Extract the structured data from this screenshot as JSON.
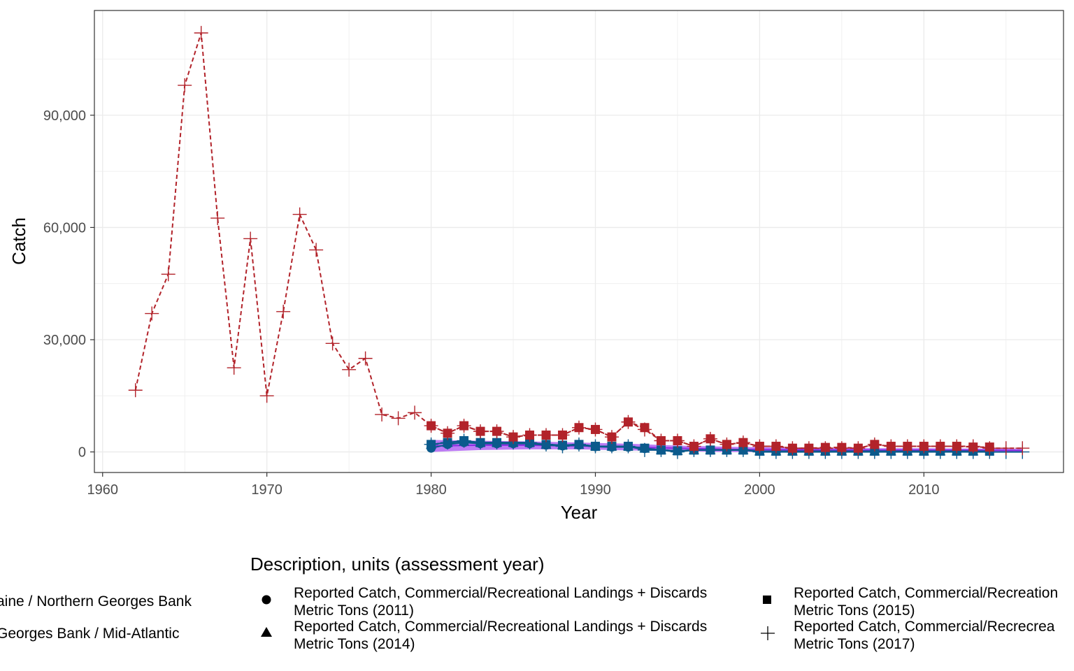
{
  "chart_data": {
    "type": "line",
    "xlabel": "Year",
    "ylabel": "Catch",
    "xlim": [
      1959.5,
      2018.5
    ],
    "ylim": [
      -5500,
      118000
    ],
    "x_ticks": [
      1960,
      1970,
      1980,
      1990,
      2000,
      2010
    ],
    "x_tick_labels": [
      "1960",
      "1970",
      "1980",
      "1990",
      "2000",
      "2010"
    ],
    "y_ticks": [
      0,
      30000,
      60000,
      90000
    ],
    "y_tick_labels": [
      "0",
      "30,000",
      "60,000",
      "90,000"
    ],
    "grid": true,
    "legend": {
      "title": "Description, units (assessment year)",
      "placement": "bottom",
      "color_entries": [
        {
          "label": "aine / Northern Georges Bank",
          "color": "#0b5a8c"
        },
        {
          "label": " Georges Bank / Mid-Atlantic",
          "color": "#b2232a"
        }
      ],
      "shape_entries": [
        {
          "shape": "circle",
          "line1": "Reported Catch, Commercial/Recreational Landings + Discards",
          "line2": "Metric Tons (2011)"
        },
        {
          "shape": "triangle",
          "line1": "Reported Catch, Commercial/Recreational Landings + Discards",
          "line2": "Metric Tons (2014)"
        },
        {
          "shape": "square",
          "line1": "Reported Catch, Commercial/Recreation",
          "line2": "Metric Tons (2015)"
        },
        {
          "shape": "plus",
          "line1": "Reported Catch, Commercial/Recrecrea",
          "line2": "Metric Tons (2017)"
        }
      ]
    },
    "colors": {
      "southern": "#b2232a",
      "northern": "#0b5a8c",
      "band": "#a64ff0",
      "band_line": "#8a2be2"
    },
    "series": [
      {
        "region": "southern",
        "shape": "plus",
        "x": [
          1962,
          1963,
          1964,
          1965,
          1966,
          1967,
          1968,
          1969,
          1970,
          1971,
          1972,
          1973,
          1974,
          1975,
          1976,
          1977,
          1978,
          1979,
          1980,
          1981,
          1982,
          1983,
          1984,
          1985,
          1986,
          1987,
          1988,
          1989,
          1990,
          1991,
          1992,
          1993,
          1994,
          1995,
          1996,
          1997,
          1998,
          1999,
          2000,
          2001,
          2002,
          2003,
          2004,
          2005,
          2006,
          2007,
          2008,
          2009,
          2010,
          2011,
          2012,
          2013,
          2014,
          2015,
          2016
        ],
        "y": [
          16500,
          37000,
          47500,
          98000,
          112000,
          62500,
          22500,
          57000,
          15000,
          37500,
          63500,
          54000,
          29000,
          22000,
          25000,
          10000,
          9000,
          10500,
          7000,
          5000,
          7000,
          5500,
          5500,
          4000,
          4500,
          4500,
          4500,
          6500,
          6000,
          4000,
          8000,
          6000,
          3000,
          3000,
          1500,
          3500,
          2000,
          2500,
          1500,
          1500,
          1000,
          1000,
          1000,
          1000,
          1000,
          2000,
          1500,
          1500,
          1500,
          1500,
          1500,
          1500,
          1000,
          1000,
          1000
        ]
      },
      {
        "region": "southern",
        "shape": "square",
        "x": [
          1980,
          1981,
          1982,
          1983,
          1984,
          1985,
          1986,
          1987,
          1988,
          1989,
          1990,
          1991,
          1992,
          1993,
          1994,
          1995,
          1996,
          1997,
          1998,
          1999,
          2000,
          2001,
          2002,
          2003,
          2004,
          2005,
          2006,
          2007,
          2008,
          2009,
          2010,
          2011,
          2012,
          2013,
          2014
        ],
        "y": [
          7000,
          5000,
          7000,
          5500,
          5500,
          4000,
          4500,
          4500,
          4500,
          6500,
          6000,
          4000,
          8000,
          6500,
          3000,
          3000,
          1500,
          3500,
          2000,
          2500,
          1500,
          1500,
          1000,
          1000,
          1200,
          1200,
          1000,
          2000,
          1500,
          1500,
          1500,
          1500,
          1500,
          1300,
          1300
        ]
      },
      {
        "region": "northern",
        "shape": "plus",
        "x": [
          1980,
          1981,
          1982,
          1983,
          1984,
          1985,
          1986,
          1987,
          1988,
          1989,
          1990,
          1991,
          1992,
          1993,
          1994,
          1995,
          1996,
          1997,
          1998,
          1999,
          2000,
          2001,
          2002,
          2003,
          2004,
          2005,
          2006,
          2007,
          2008,
          2009,
          2010,
          2011,
          2012,
          2013,
          2014,
          2015,
          2016
        ],
        "y": [
          2000,
          2500,
          3000,
          2500,
          2500,
          2500,
          2500,
          2000,
          1500,
          2000,
          1500,
          1500,
          1500,
          500,
          500,
          0,
          500,
          500,
          500,
          500,
          0,
          0,
          0,
          0,
          0,
          0,
          0,
          0,
          0,
          0,
          0,
          0,
          0,
          0,
          0,
          0,
          0
        ]
      },
      {
        "region": "northern",
        "shape": "square",
        "x": [
          1980,
          1981,
          1982,
          1983,
          1984,
          1985,
          1986,
          1987,
          1988,
          1989,
          1990,
          1991,
          1992,
          1993,
          1994,
          1995,
          1996,
          1997,
          1998,
          1999,
          2000,
          2001,
          2002,
          2003,
          2004,
          2005,
          2006,
          2007,
          2008,
          2009,
          2010,
          2011,
          2012,
          2013,
          2014
        ],
        "y": [
          2000,
          2500,
          3000,
          2500,
          2500,
          2500,
          2500,
          2000,
          1800,
          2000,
          1500,
          1500,
          1500,
          1000,
          500,
          300,
          500,
          500,
          500,
          500,
          200,
          200,
          200,
          200,
          200,
          200,
          200,
          200,
          200,
          200,
          200,
          200,
          200,
          200,
          200
        ]
      },
      {
        "region": "northern",
        "shape": "triangle",
        "x": [
          1980,
          1981,
          1982,
          1983,
          1984,
          1985,
          1986,
          1987,
          1988,
          1989,
          1990,
          1991,
          1992,
          1993,
          1994,
          1995,
          1996,
          1997,
          1998,
          1999,
          2000,
          2001,
          2002,
          2003,
          2004,
          2005,
          2006,
          2007,
          2008,
          2009,
          2010,
          2011,
          2012,
          2013
        ],
        "y": [
          2000,
          2500,
          2800,
          2500,
          2500,
          2500,
          2500,
          2000,
          1800,
          2000,
          1500,
          1500,
          1500,
          1000,
          500,
          300,
          500,
          500,
          500,
          500,
          200,
          200,
          200,
          200,
          200,
          200,
          200,
          200,
          200,
          200,
          200,
          200,
          200,
          200
        ]
      },
      {
        "region": "northern",
        "shape": "circle",
        "x": [
          1980,
          1981,
          1982,
          1983,
          1984,
          1985,
          1986,
          1987,
          1988,
          1989,
          1990,
          1991,
          1992,
          1993,
          1994,
          1995,
          1996,
          1997,
          1998,
          1999,
          2000,
          2001,
          2002,
          2003,
          2004,
          2005,
          2006,
          2007,
          2008,
          2009,
          2010
        ],
        "y": [
          1000,
          2000,
          2500,
          2200,
          2200,
          2200,
          2200,
          1800,
          1600,
          1800,
          1400,
          1300,
          1300,
          900,
          500,
          300,
          500,
          500,
          500,
          500,
          200,
          200,
          200,
          200,
          200,
          200,
          200,
          200,
          200,
          200,
          200
        ]
      }
    ],
    "band": {
      "x": [
        1980,
        1983,
        1986,
        1989,
        1992,
        1995,
        1998,
        2001,
        2004,
        2007,
        2010,
        2013,
        2016
      ],
      "low": [
        0,
        500,
        700,
        700,
        400,
        200,
        0,
        0,
        0,
        0,
        0,
        0,
        0
      ],
      "high": [
        3200,
        3000,
        2800,
        2500,
        2200,
        1700,
        1400,
        1200,
        1100,
        1000,
        1000,
        900,
        800
      ],
      "mid": [
        1600,
        1800,
        1800,
        1600,
        1300,
        1000,
        700,
        600,
        550,
        500,
        500,
        450,
        400
      ]
    }
  }
}
